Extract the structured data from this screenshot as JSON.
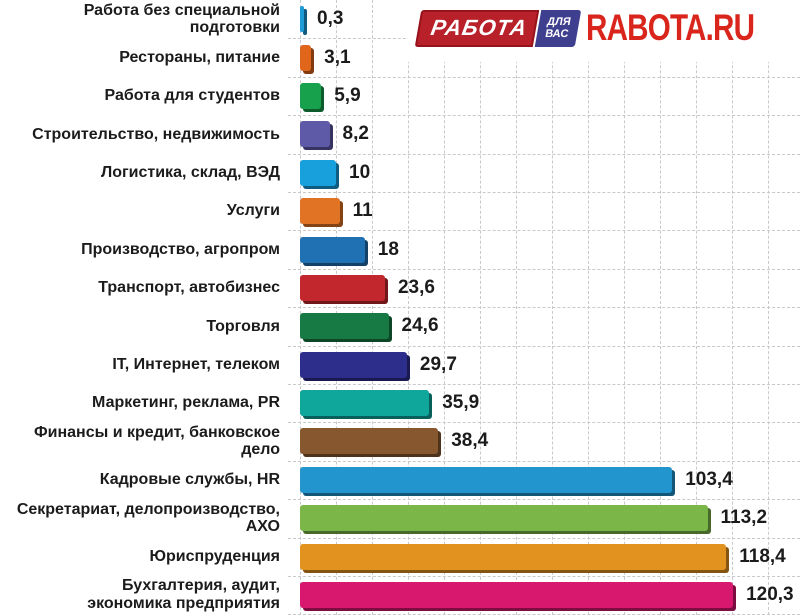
{
  "logo": {
    "rabota_box": "РАБОТА",
    "dlya": "ДЛЯ",
    "vas": "ВАС",
    "rabota_ru": "RABOTA.RU",
    "box_red": "#b8202a",
    "box_blue": "#3f3f90",
    "ru_red": "#d9251c"
  },
  "chart_data": {
    "type": "bar",
    "orientation": "horizontal",
    "title": "",
    "xlabel": "",
    "ylabel": "",
    "xlim": [
      0,
      139
    ],
    "grid": {
      "style": "dashed",
      "vertical_step_units": 10,
      "horizontal": "per-row"
    },
    "legend": "none",
    "categories": [
      "Работа без специальной подготовки",
      "Рестораны, питание",
      "Работа для студентов",
      "Строительство, недвижимость",
      "Логистика, склад, ВЭД",
      "Услуги",
      "Производство, агропром",
      "Транспорт, автобизнес",
      "Торговля",
      "IT, Интернет, телеком",
      "Маркетинг, реклама, PR",
      "Финансы и кредит, банковское дело",
      "Кадровые службы, HR",
      "Секретариат, делопроизводство, АХО",
      "Юриспруденция",
      "Бухгалтерия, аудит,\nэкономика предприятия"
    ],
    "values": [
      0.3,
      3.1,
      5.9,
      8.2,
      10,
      11,
      18,
      23.6,
      24.6,
      29.7,
      35.9,
      38.4,
      103.4,
      113.2,
      118.4,
      120.3
    ],
    "value_labels": [
      "0,3",
      "3,1",
      "5,9",
      "8,2",
      "10",
      "11",
      "18",
      "23,6",
      "24,6",
      "29,7",
      "35,9",
      "38,4",
      "103,4",
      "113,2",
      "118,4",
      "120,3"
    ],
    "colors": [
      "#1d9cd8",
      "#e0661c",
      "#17a14c",
      "#5f5aa8",
      "#18a0dc",
      "#e17424",
      "#2070b4",
      "#c1272d",
      "#177a45",
      "#2d2d8c",
      "#0fa69b",
      "#875830",
      "#2294ce",
      "#7ab648",
      "#e2921e",
      "#d8176f"
    ],
    "grid_color": "#c9c9c9",
    "text_color": "#1b1b1b"
  }
}
